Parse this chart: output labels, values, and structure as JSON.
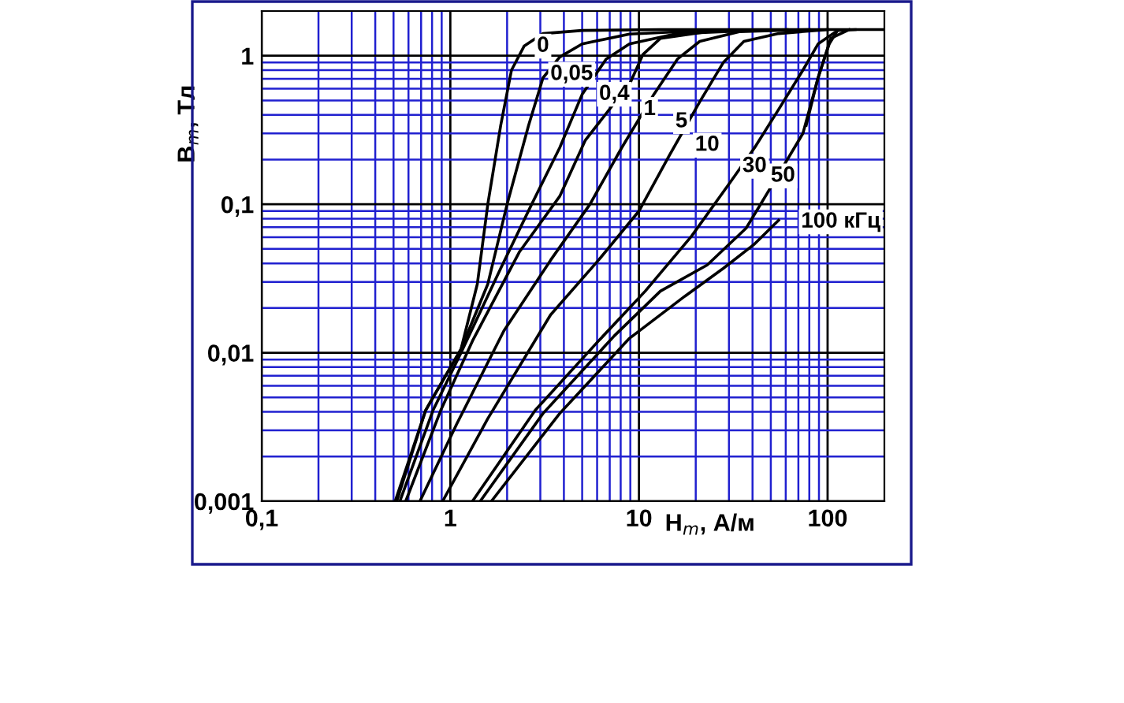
{
  "chart_data": {
    "type": "line",
    "xlabel": "H$_{m}$, А/м",
    "ylabel": "B$_{m}$, Тл",
    "log": "xy",
    "grid": true,
    "marker": "none",
    "line_style": "solid",
    "xlim": [
      0.1,
      200
    ],
    "ylim": [
      0.001,
      2
    ],
    "xticks": [
      {
        "value": 0.1,
        "label": "0,1"
      },
      {
        "value": 0.2,
        "label": null
      },
      {
        "value": 0.3,
        "label": null
      },
      {
        "value": 0.4,
        "label": null
      },
      {
        "value": 0.5,
        "label": null
      },
      {
        "value": 0.6,
        "label": null
      },
      {
        "value": 0.7,
        "label": null
      },
      {
        "value": 0.8,
        "label": null
      },
      {
        "value": 0.9,
        "label": null
      },
      1,
      {
        "value": 2,
        "label": null
      },
      {
        "value": 3,
        "label": null
      },
      {
        "value": 4,
        "label": null
      },
      {
        "value": 5,
        "label": null
      },
      {
        "value": 6,
        "label": null
      },
      {
        "value": 7,
        "label": null
      },
      {
        "value": 8,
        "label": null
      },
      {
        "value": 9,
        "label": null
      },
      10,
      {
        "value": 20,
        "label": null
      },
      {
        "value": 30,
        "label": null
      },
      {
        "value": 40,
        "label": null
      },
      {
        "value": 50,
        "label": null
      },
      {
        "value": 60,
        "label": null
      },
      {
        "value": 70,
        "label": null
      },
      {
        "value": 80,
        "label": null
      },
      {
        "value": 90,
        "label": null
      },
      100
    ],
    "yticks": [
      {
        "value": 0.001,
        "label": "0,001"
      },
      {
        "value": 0.002,
        "label": null
      },
      {
        "value": 0.003,
        "label": null
      },
      {
        "value": 0.004,
        "label": null
      },
      {
        "value": 0.005,
        "label": null
      },
      {
        "value": 0.006,
        "label": null
      },
      {
        "value": 0.007,
        "label": null
      },
      {
        "value": 0.008,
        "label": null
      },
      {
        "value": 0.009,
        "label": null
      },
      {
        "value": 0.01,
        "label": "0,01"
      },
      {
        "value": 0.02,
        "label": null
      },
      {
        "value": 0.03,
        "label": null
      },
      {
        "value": 0.04,
        "label": null
      },
      {
        "value": 0.05,
        "label": null
      },
      {
        "value": 0.06,
        "label": null
      },
      {
        "value": 0.07,
        "label": null
      },
      {
        "value": 0.08,
        "label": null
      },
      {
        "value": 0.09,
        "label": null
      },
      {
        "value": 0.1,
        "label": "0,1"
      },
      {
        "value": 0.2,
        "label": null
      },
      {
        "value": 0.3,
        "label": null
      },
      {
        "value": 0.4,
        "label": null
      },
      {
        "value": 0.5,
        "label": null
      },
      {
        "value": 0.6,
        "label": null
      },
      {
        "value": 0.7,
        "label": null
      },
      {
        "value": 0.8,
        "label": null
      },
      {
        "value": 0.9,
        "label": null
      },
      1
    ],
    "series": [
      {
        "color": "#000000",
        "x": [
          0.51,
          0.74,
          1.14,
          1.39,
          1.58,
          1.85,
          2.11,
          2.46,
          3.1,
          5,
          13,
          200
        ],
        "values": [
          0.001,
          0.0041,
          0.0106,
          0.029,
          0.1,
          0.34,
          0.8,
          1.16,
          1.41,
          1.48,
          1.5,
          1.5
        ]
      },
      {
        "color": "#000000",
        "x": [
          0.52,
          0.74,
          1.14,
          1.58,
          2.0,
          2.6,
          3.1,
          3.8,
          5,
          8.9,
          23
        ],
        "values": [
          0.001,
          0.0041,
          0.0106,
          0.029,
          0.1,
          0.34,
          0.71,
          0.98,
          1.2,
          1.4,
          1.48
        ]
      },
      {
        "color": "#000000",
        "x": [
          0.54,
          0.81,
          1.14,
          1.85,
          2.7,
          3.8,
          5,
          6.7,
          8.9,
          16,
          41
        ],
        "values": [
          0.001,
          0.0041,
          0.01,
          0.037,
          0.1,
          0.24,
          0.55,
          0.95,
          1.2,
          1.41,
          1.48
        ]
      },
      {
        "color": "#000000",
        "x": [
          0.58,
          0.89,
          1.31,
          2.33,
          3.8,
          5.2,
          9.0,
          10.5,
          13,
          23,
          61
        ],
        "values": [
          0.001,
          0.0041,
          0.012,
          0.048,
          0.113,
          0.27,
          0.66,
          1.02,
          1.31,
          1.45,
          1.5
        ]
      },
      {
        "color": "#000000",
        "x": [
          0.69,
          1.08,
          1.92,
          3.4,
          5.5,
          8.1,
          12,
          16,
          21,
          34,
          80
        ],
        "values": [
          0.001,
          0.0033,
          0.014,
          0.042,
          0.1,
          0.24,
          0.55,
          0.95,
          1.25,
          1.45,
          1.5
        ]
      },
      {
        "color": "#000000",
        "x": [
          0.91,
          1.58,
          3.4,
          6.1,
          10,
          14.4,
          21,
          28,
          36,
          55,
          100
        ],
        "values": [
          0.001,
          0.0036,
          0.018,
          0.042,
          0.09,
          0.21,
          0.49,
          0.9,
          1.25,
          1.41,
          1.5
        ]
      },
      {
        "color": "#000000",
        "x": [
          1.31,
          2.82,
          6.1,
          10.8,
          19,
          31,
          41,
          55,
          74,
          89,
          113
        ],
        "values": [
          0.001,
          0.0041,
          0.012,
          0.026,
          0.061,
          0.145,
          0.24,
          0.435,
          0.8,
          1.2,
          1.48
        ]
      },
      {
        "color": "#000000",
        "x": [
          1.44,
          3.1,
          7.4,
          13,
          23,
          37,
          50,
          74,
          89,
          104,
          130
        ],
        "values": [
          0.001,
          0.0039,
          0.013,
          0.026,
          0.039,
          0.069,
          0.13,
          0.3,
          0.71,
          1.31,
          1.5
        ]
      },
      {
        "color": "#000000",
        "x": [
          1.65,
          3.8,
          8.9,
          17.5,
          28,
          41,
          55,
          62,
          77,
          89,
          102,
          113,
          140
        ],
        "values": [
          0.001,
          0.0039,
          0.0125,
          0.024,
          0.037,
          0.054,
          0.078,
          null,
          0.34,
          0.71,
          1.2,
          1.48,
          1.5
        ]
      }
    ],
    "annotations": [
      {
        "text": "0",
        "x": 3.1,
        "y": 1.16
      },
      {
        "text": "0,05",
        "x": 4.4,
        "y": 0.75
      },
      {
        "text": "0,4",
        "x": 7.4,
        "y": 0.55
      },
      {
        "text": "1",
        "x": 11.4,
        "y": 0.435
      },
      {
        "text": "5",
        "x": 16.8,
        "y": 0.36
      },
      {
        "text": "10",
        "x": 23,
        "y": 0.25
      },
      {
        "text": "30",
        "x": 41,
        "y": 0.18
      },
      {
        "text": "50",
        "x": 58,
        "y": 0.155
      },
      "100 кГц"
    ]
  }
}
